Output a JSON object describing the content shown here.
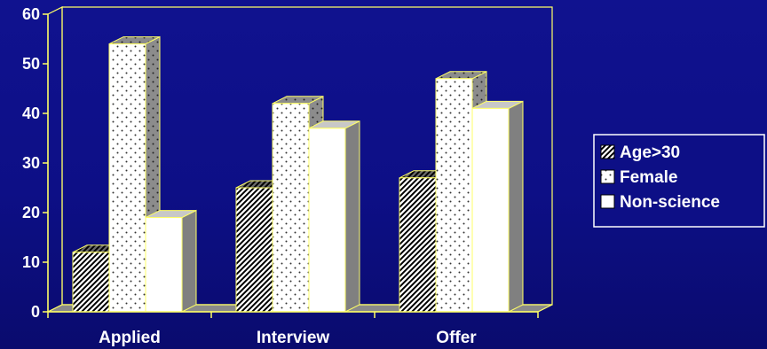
{
  "chart_data": {
    "type": "bar",
    "categories": [
      "Applied",
      "Interview",
      "Offer"
    ],
    "series": [
      {
        "name": "Age>30",
        "values": [
          12,
          25,
          27
        ],
        "pattern": "hatch",
        "color": "#ffffff"
      },
      {
        "name": "Female",
        "values": [
          54,
          42,
          47
        ],
        "pattern": "dots",
        "color": "#ffffff"
      },
      {
        "name": "Non-science",
        "values": [
          19,
          37,
          41
        ],
        "pattern": "solid",
        "color": "#ffffff"
      }
    ],
    "y_ticks": [
      "0",
      "10",
      "20",
      "30",
      "40",
      "50",
      "60"
    ],
    "ylim": [
      0,
      60
    ],
    "grid": false,
    "legend_position": "right",
    "three_d": true,
    "colors": {
      "background": "#0d0f86",
      "axis": "#ffff66",
      "wall_side": "#8a8a8a",
      "bar_outline": "#ffff66",
      "bar_face": "#ffffff"
    }
  }
}
